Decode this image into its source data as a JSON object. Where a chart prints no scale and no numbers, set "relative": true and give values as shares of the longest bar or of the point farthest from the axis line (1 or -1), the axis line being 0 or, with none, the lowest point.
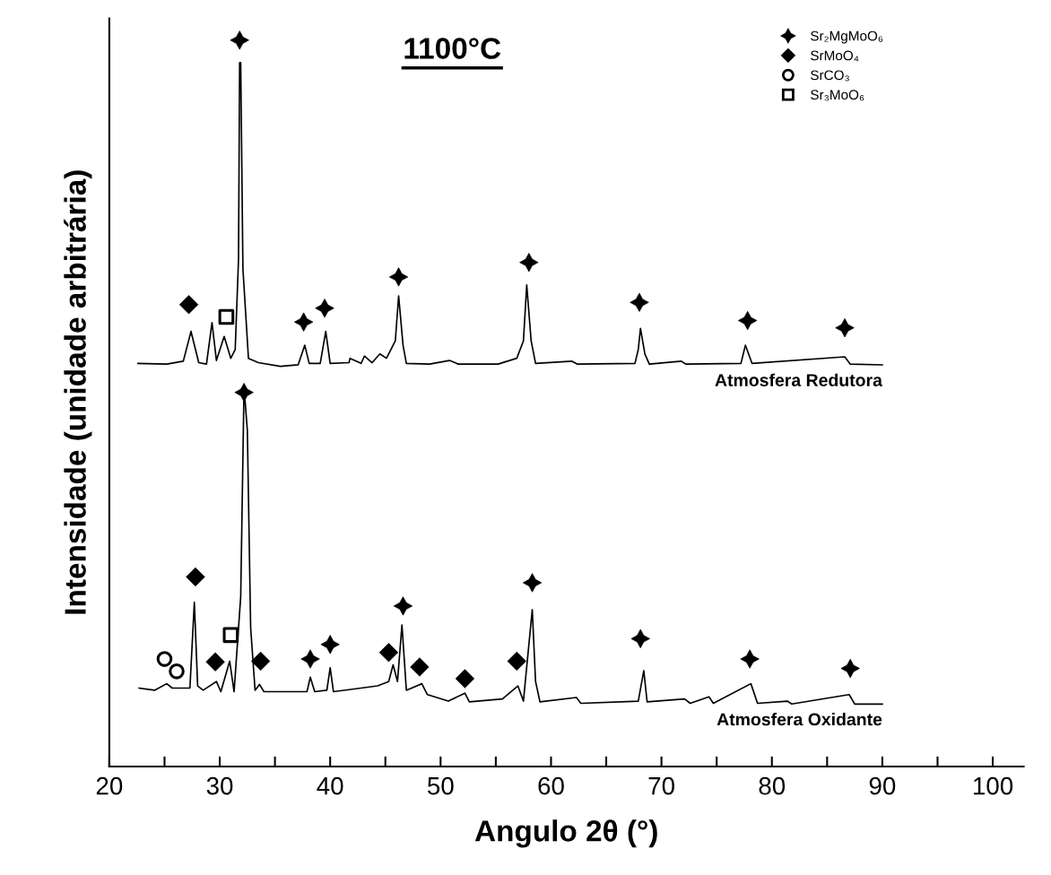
{
  "chart_data": {
    "type": "line",
    "title": "1100°C",
    "xlabel": "Angulo 2θ (°)",
    "ylabel": "Intensidade (unidade arbitrária)",
    "relative": true,
    "legend": "top right",
    "grid": false,
    "tick_labels": "x",
    "xlim": [
      20,
      102.8
    ],
    "xticks": [
      20,
      {
        "value": 25,
        "label": null
      },
      30,
      {
        "value": 35,
        "label": null
      },
      40,
      {
        "value": 45,
        "label": null
      },
      50,
      {
        "value": 55,
        "label": null
      },
      60,
      {
        "value": 65,
        "label": null
      },
      70,
      {
        "value": 75,
        "label": null
      },
      80,
      {
        "value": 85,
        "label": null
      },
      90,
      {
        "value": 95,
        "label": null
      },
      100
    ],
    "series": [
      {
        "name": "Atmosfera Redutora",
        "type": "line",
        "color": "#000000",
        "marker": "none",
        "line_style": "solid",
        "x": [
          22.6,
          25.2,
          26.7,
          27.4,
          28.1,
          28.8,
          29.3,
          29.7,
          30.4,
          31.0,
          31.4,
          31.7,
          31.8,
          31.9,
          32.1,
          32.6,
          33.5,
          35.5,
          37.1,
          37.7,
          38.1,
          39.1,
          39.6,
          40.0,
          41.7,
          41.8,
          42.8,
          43.1,
          43.8,
          44.5,
          45.1,
          45.9,
          46.2,
          46.6,
          46.9,
          49.0,
          50.8,
          51.6,
          55.2,
          56.9,
          57.5,
          57.8,
          58.2,
          58.6,
          61.9,
          62.4,
          67.6,
          67.9,
          68.1,
          68.5,
          68.9,
          71.8,
          72.2,
          77.2,
          77.6,
          78.2,
          86.6,
          87.1,
          90.0
        ],
        "values": [
          0.555,
          0.554,
          0.558,
          0.599,
          0.556,
          0.554,
          0.611,
          0.559,
          0.592,
          0.562,
          0.574,
          0.698,
          0.969,
          0.969,
          0.685,
          0.562,
          0.556,
          0.551,
          0.553,
          0.58,
          0.555,
          0.555,
          0.599,
          0.555,
          0.556,
          0.562,
          0.555,
          0.565,
          0.556,
          0.568,
          0.562,
          0.586,
          0.648,
          0.58,
          0.555,
          0.554,
          0.559,
          0.554,
          0.554,
          0.562,
          0.586,
          0.663,
          0.586,
          0.555,
          0.558,
          0.554,
          0.555,
          0.574,
          0.603,
          0.568,
          0.554,
          0.558,
          0.554,
          0.555,
          0.58,
          0.555,
          0.564,
          0.554,
          0.553
        ]
      },
      {
        "name": "Atmosfera Oxidante",
        "color": "#000000",
        "marker": "none",
        "line_style": "solid",
        "x": [
          22.7,
          24.1,
          25.2,
          25.7,
          27.3,
          27.7,
          28.0,
          28.5,
          29.7,
          30.1,
          30.9,
          31.3,
          31.9,
          32.2,
          32.5,
          32.8,
          33.2,
          33.6,
          34.0,
          37.9,
          38.2,
          38.6,
          39.7,
          40.0,
          40.3,
          42.8,
          44.3,
          45.3,
          45.7,
          46.1,
          46.5,
          46.9,
          48.3,
          48.8,
          50.7,
          52.2,
          52.6,
          55.6,
          57.0,
          57.5,
          58.3,
          58.6,
          59.0,
          62.3,
          62.7,
          67.9,
          68.4,
          68.7,
          72.1,
          72.6,
          74.3,
          74.7,
          78.1,
          78.7,
          81.4,
          81.8,
          87.0,
          87.5,
          90.0
        ],
        "values": [
          0.108,
          0.105,
          0.114,
          0.108,
          0.108,
          0.226,
          0.111,
          0.105,
          0.117,
          0.103,
          0.145,
          0.103,
          0.234,
          0.522,
          0.463,
          0.191,
          0.105,
          0.113,
          0.103,
          0.103,
          0.123,
          0.103,
          0.105,
          0.136,
          0.103,
          0.108,
          0.111,
          0.117,
          0.14,
          0.117,
          0.195,
          0.105,
          0.114,
          0.099,
          0.09,
          0.101,
          0.089,
          0.093,
          0.111,
          0.09,
          0.216,
          0.117,
          0.089,
          0.095,
          0.087,
          0.09,
          0.132,
          0.089,
          0.093,
          0.087,
          0.096,
          0.087,
          0.114,
          0.087,
          0.09,
          0.086,
          0.099,
          0.086,
          0.086
        ]
      },
      {
        "name": "Sr₂MgMoO₆",
        "type": "scatter",
        "color": "#000000",
        "marker": "star",
        "x": [
          31.8,
          37.6,
          39.5,
          46.2,
          58.0,
          68.0,
          77.8,
          86.6,
          32.2,
          38.2,
          40.0,
          46.6,
          58.3,
          68.1,
          78.0,
          87.1
        ],
        "values": [
          1.0,
          0.612,
          0.631,
          0.674,
          0.694,
          0.639,
          0.614,
          0.604,
          0.515,
          0.148,
          0.168,
          0.221,
          0.253,
          0.176,
          0.148,
          0.135
        ]
      },
      {
        "name": "SrMoO₄",
        "type": "scatter",
        "color": "#000000",
        "marker": "diamond",
        "x": [
          27.2,
          27.8,
          29.6,
          33.7,
          45.3,
          48.1,
          52.2,
          56.9
        ],
        "values": [
          0.636,
          0.261,
          0.144,
          0.145,
          0.157,
          0.137,
          0.121,
          0.145
        ]
      },
      {
        "name": "SrCO₃",
        "type": "scatter",
        "color": "#000000",
        "marker": "circle",
        "x": [
          25.0,
          26.1
        ],
        "values": [
          0.148,
          0.131
        ]
      },
      {
        "name": "Sr₃MoO₆",
        "type": "scatter",
        "color": "#000000",
        "marker": "square",
        "x": [
          30.6,
          31.0
        ],
        "values": [
          0.619,
          0.181
        ]
      }
    ]
  }
}
